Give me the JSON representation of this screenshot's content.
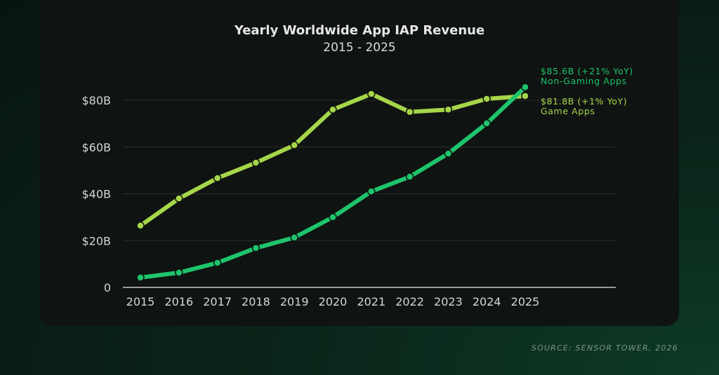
{
  "chart_data": {
    "type": "line",
    "title": "Yearly Worldwide App IAP Revenue",
    "subtitle": "2015 - 2025",
    "x": [
      2015,
      2016,
      2017,
      2018,
      2019,
      2020,
      2021,
      2022,
      2023,
      2024,
      2025
    ],
    "x_tick_labels": [
      "2015",
      "2016",
      "2017",
      "2018",
      "2019",
      "2020",
      "2021",
      "2022",
      "2023",
      "2024",
      "2025"
    ],
    "ylim": [
      0,
      80
    ],
    "y_ticks": [
      0,
      20,
      40,
      60,
      80
    ],
    "y_tick_labels": [
      "0",
      "$20B",
      "$40B",
      "$60B",
      "$80B"
    ],
    "grid": true,
    "series": [
      {
        "name": "Game Apps",
        "color": "#a6d64a",
        "values": [
          26.4,
          38.0,
          46.7,
          53.3,
          60.8,
          76.0,
          82.7,
          75.0,
          76.0,
          80.6,
          81.8
        ],
        "annotation": {
          "value": "$81.8B (+1% YoY)",
          "label": "Game Apps"
        }
      },
      {
        "name": "Non-Gaming Apps",
        "color": "#1ec46c",
        "values": [
          4.2,
          6.3,
          10.5,
          16.8,
          21.3,
          30.0,
          41.0,
          47.3,
          57.2,
          70.1,
          85.6
        ],
        "annotation": {
          "value": "$85.6B (+21% YoY)",
          "label": "Non-Gaming Apps"
        }
      }
    ],
    "source": "SOURCE: SENSOR TOWER, 2026"
  }
}
